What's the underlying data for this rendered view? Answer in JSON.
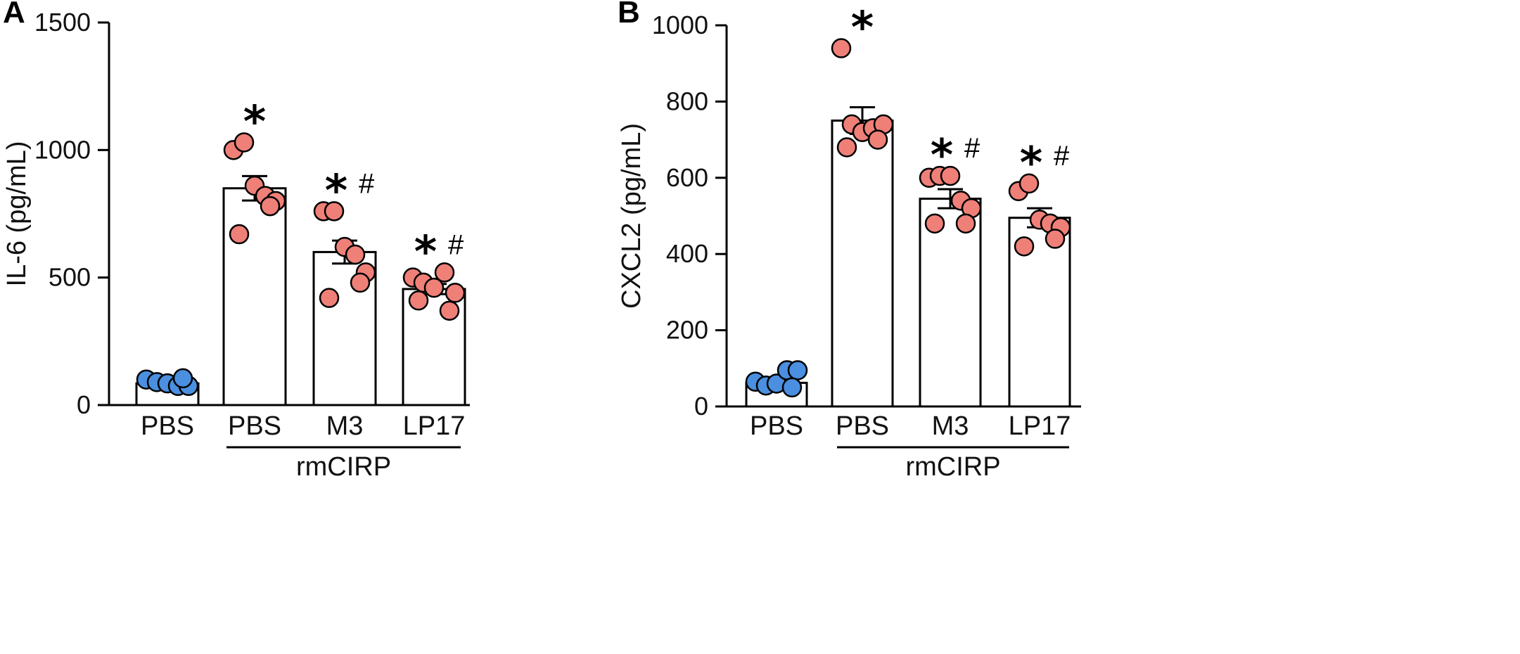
{
  "colors": {
    "pbs_dot": "#4a8fe0",
    "rmcirp_dot": "#ef8078",
    "bar_fill": "#ffffff",
    "axis": "#000000"
  },
  "chart_data": [
    {
      "panel": "A",
      "type": "bar",
      "ylabel": "IL-6 (pg/mL)",
      "ylim": [
        0,
        1500
      ],
      "yticks": [
        "0",
        "500",
        "1000",
        "1500"
      ],
      "categories": [
        "PBS",
        "PBS",
        "M3",
        "LP17"
      ],
      "group_label": "rmCIRP",
      "group_span": [
        1,
        3
      ],
      "means": [
        85,
        850,
        600,
        455
      ],
      "sem": [
        12,
        48,
        45,
        20
      ],
      "points": [
        [
          100,
          90,
          85,
          75,
          75,
          105
        ],
        [
          1000,
          1030,
          860,
          820,
          800,
          780,
          670
        ],
        [
          760,
          760,
          620,
          590,
          520,
          480,
          420
        ],
        [
          500,
          480,
          460,
          520,
          440,
          370,
          410
        ]
      ],
      "annotations": [
        {
          "index": 1,
          "star": "*",
          "hash": ""
        },
        {
          "index": 2,
          "star": "*",
          "hash": "#"
        },
        {
          "index": 3,
          "star": "*",
          "hash": "#"
        }
      ]
    },
    {
      "panel": "B",
      "type": "bar",
      "ylabel": "CXCL2 (pg/mL)",
      "ylim": [
        0,
        1000
      ],
      "yticks": [
        "0",
        "200",
        "400",
        "600",
        "800",
        "1000"
      ],
      "categories": [
        "PBS",
        "PBS",
        "M3",
        "LP17"
      ],
      "group_label": "rmCIRP",
      "group_span": [
        1,
        3
      ],
      "means": [
        62,
        750,
        545,
        495
      ],
      "sem": [
        9,
        35,
        25,
        25
      ],
      "points": [
        [
          65,
          55,
          60,
          95,
          95,
          50
        ],
        [
          940,
          740,
          720,
          730,
          740,
          700,
          680
        ],
        [
          600,
          605,
          605,
          540,
          520,
          480,
          480
        ],
        [
          565,
          585,
          490,
          480,
          470,
          440,
          420
        ]
      ],
      "annotations": [
        {
          "index": 1,
          "star": "*",
          "hash": ""
        },
        {
          "index": 2,
          "star": "*",
          "hash": "#"
        },
        {
          "index": 3,
          "star": "*",
          "hash": "#"
        }
      ]
    }
  ]
}
